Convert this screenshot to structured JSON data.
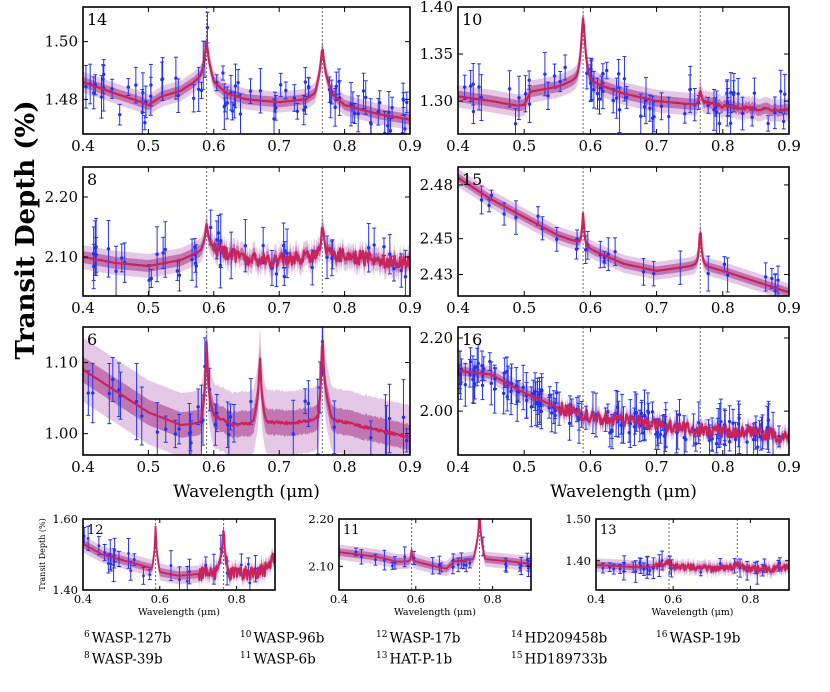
{
  "figure": {
    "ylabel": "Transit Depth (%)",
    "colors": {
      "model_dark": "#b3124e",
      "model_main": "#c8235c",
      "band_inner": "#b4529b",
      "band_outer": "#dcb6dc",
      "data": "#2233ee",
      "dashed": "#777777"
    }
  },
  "chart_data": [
    {
      "id": "14",
      "type": "line",
      "planet": "HD209458b",
      "xlim": [
        0.4,
        0.9
      ],
      "ylim": [
        1.468,
        1.512
      ],
      "yticks": [
        1.48,
        1.5
      ],
      "ytick_labels": [
        "1.48",
        "1.50"
      ],
      "xticks": [
        0.4,
        0.5,
        0.6,
        0.7,
        0.8,
        0.9
      ],
      "xtick_labels": [
        "0.4",
        "0.5",
        "0.6",
        "0.7",
        "0.8",
        "0.9"
      ],
      "xlabel": "",
      "model": [
        [
          0.4,
          1.486
        ],
        [
          0.45,
          1.482
        ],
        [
          0.49,
          1.479
        ],
        [
          0.5,
          1.478
        ],
        [
          0.52,
          1.481
        ],
        [
          0.55,
          1.483
        ],
        [
          0.57,
          1.486
        ],
        [
          0.58,
          1.488
        ],
        [
          0.589,
          1.495
        ],
        [
          0.6,
          1.486
        ],
        [
          0.62,
          1.482
        ],
        [
          0.65,
          1.48
        ],
        [
          0.7,
          1.479
        ],
        [
          0.74,
          1.48
        ],
        [
          0.755,
          1.482
        ],
        [
          0.766,
          1.492
        ],
        [
          0.78,
          1.482
        ],
        [
          0.8,
          1.478
        ],
        [
          0.85,
          1.475
        ],
        [
          0.9,
          1.473
        ]
      ],
      "lines": [
        {
          "x": 0.589,
          "w": 0.006,
          "h": 0.005,
          "s": 0.002
        },
        {
          "x": 0.766,
          "w": 0.006,
          "h": 0.006,
          "s": 0.002
        }
      ],
      "noise": 0.0004,
      "noise_start": 0.9,
      "band": 0.0018,
      "n_points": 80,
      "scatter": 0.007,
      "err": 0.006,
      "xpoints": []
    },
    {
      "id": "10",
      "type": "line",
      "planet": "WASP-96b",
      "xlim": [
        0.4,
        0.9
      ],
      "ylim": [
        1.265,
        1.4
      ],
      "yticks": [
        1.3,
        1.35,
        1.4
      ],
      "ytick_labels": [
        "1.30",
        "1.35",
        "1.40"
      ],
      "xticks": [
        0.4,
        0.5,
        0.6,
        0.7,
        0.8,
        0.9
      ],
      "xtick_labels": [
        "0.4",
        "0.5",
        "0.6",
        "0.7",
        "0.8",
        "0.9"
      ],
      "xlabel": "",
      "model": [
        [
          0.4,
          1.305
        ],
        [
          0.45,
          1.3
        ],
        [
          0.49,
          1.295
        ],
        [
          0.5,
          1.296
        ],
        [
          0.51,
          1.31
        ],
        [
          0.55,
          1.315
        ],
        [
          0.58,
          1.322
        ],
        [
          0.589,
          1.338
        ],
        [
          0.6,
          1.32
        ],
        [
          0.65,
          1.308
        ],
        [
          0.7,
          1.3
        ],
        [
          0.76,
          1.296
        ],
        [
          0.766,
          1.3
        ],
        [
          0.8,
          1.294
        ],
        [
          0.85,
          1.292
        ],
        [
          0.9,
          1.291
        ]
      ],
      "lines": [
        {
          "x": 0.589,
          "w": 0.008,
          "h": 0.05,
          "s": 0.006
        },
        {
          "x": 0.766,
          "w": 0.004,
          "h": 0.012,
          "s": 0.002
        }
      ],
      "noise": 0.002,
      "noise_start": 0.77,
      "band": 0.006,
      "n_points": 70,
      "scatter": 0.02,
      "err": 0.018,
      "xpoints": []
    },
    {
      "id": "8",
      "type": "line",
      "planet": "WASP-39b",
      "xlim": [
        0.4,
        0.9
      ],
      "ylim": [
        2.035,
        2.25
      ],
      "yticks": [
        2.1,
        2.2
      ],
      "ytick_labels": [
        "2.10",
        "2.20"
      ],
      "xticks": [
        0.4,
        0.5,
        0.6,
        0.7,
        0.8,
        0.9
      ],
      "xtick_labels": [
        "0.4",
        "0.5",
        "0.6",
        "0.7",
        "0.8",
        "0.9"
      ],
      "xlabel": "",
      "model": [
        [
          0.4,
          2.1
        ],
        [
          0.45,
          2.09
        ],
        [
          0.5,
          2.085
        ],
        [
          0.55,
          2.095
        ],
        [
          0.58,
          2.11
        ],
        [
          0.589,
          2.13
        ],
        [
          0.6,
          2.115
        ],
        [
          0.65,
          2.095
        ],
        [
          0.7,
          2.095
        ],
        [
          0.75,
          2.1
        ],
        [
          0.766,
          2.12
        ],
        [
          0.78,
          2.105
        ],
        [
          0.85,
          2.095
        ],
        [
          0.9,
          2.09
        ]
      ],
      "lines": [
        {
          "x": 0.589,
          "w": 0.005,
          "h": 0.025,
          "s": 0.006
        },
        {
          "x": 0.766,
          "w": 0.005,
          "h": 0.025,
          "s": 0.006
        }
      ],
      "noise": 0.012,
      "noise_start": 0.6,
      "band": 0.01,
      "n_points": 45,
      "scatter": 0.03,
      "err": 0.035,
      "xpoints": []
    },
    {
      "id": "15",
      "type": "line",
      "planet": "HD189733b",
      "xlim": [
        0.4,
        0.9
      ],
      "ylim": [
        2.418,
        2.49
      ],
      "yticks": [
        2.43,
        2.45,
        2.48
      ],
      "ytick_labels": [
        "2.43",
        "2.45",
        "2.48"
      ],
      "xticks": [
        0.4,
        0.5,
        0.6,
        0.7,
        0.8,
        0.9
      ],
      "xtick_labels": [
        "0.4",
        "0.5",
        "0.6",
        "0.7",
        "0.8",
        "0.9"
      ],
      "xlabel": "",
      "model": [
        [
          0.4,
          2.484
        ],
        [
          0.45,
          2.472
        ],
        [
          0.5,
          2.462
        ],
        [
          0.55,
          2.452
        ],
        [
          0.58,
          2.448
        ],
        [
          0.6,
          2.444
        ],
        [
          0.65,
          2.436
        ],
        [
          0.7,
          2.432
        ],
        [
          0.74,
          2.434
        ],
        [
          0.766,
          2.435
        ],
        [
          0.8,
          2.432
        ],
        [
          0.85,
          2.426
        ],
        [
          0.9,
          2.42
        ]
      ],
      "lines": [
        {
          "x": 0.589,
          "w": 0.004,
          "h": 0.018,
          "s": 0.001
        },
        {
          "x": 0.766,
          "w": 0.005,
          "h": 0.02,
          "s": 0.001
        }
      ],
      "noise": 0.0004,
      "noise_start": 0.9,
      "band": 0.0025,
      "n_points": 28,
      "scatter": 0.005,
      "err": 0.007,
      "xpoints": []
    },
    {
      "id": "6",
      "type": "line",
      "planet": "WASP-127b",
      "xlim": [
        0.4,
        0.9
      ],
      "ylim": [
        0.97,
        1.15
      ],
      "yticks": [
        1.0,
        1.1
      ],
      "ytick_labels": [
        "1.00",
        "1.10"
      ],
      "xticks": [
        0.4,
        0.5,
        0.6,
        0.7,
        0.8,
        0.9
      ],
      "xtick_labels": [
        "0.4",
        "0.5",
        "0.6",
        "0.7",
        "0.8",
        "0.9"
      ],
      "xlabel": "Wavelength (μm)",
      "model": [
        [
          0.4,
          1.09
        ],
        [
          0.45,
          1.06
        ],
        [
          0.5,
          1.03
        ],
        [
          0.55,
          1.012
        ],
        [
          0.58,
          1.015
        ],
        [
          0.589,
          1.06
        ],
        [
          0.6,
          1.025
        ],
        [
          0.63,
          1.012
        ],
        [
          0.66,
          1.015
        ],
        [
          0.67,
          1.055
        ],
        [
          0.68,
          1.015
        ],
        [
          0.72,
          1.015
        ],
        [
          0.76,
          1.02
        ],
        [
          0.766,
          1.08
        ],
        [
          0.78,
          1.02
        ],
        [
          0.85,
          1.005
        ],
        [
          0.9,
          0.995
        ]
      ],
      "lines": [
        {
          "x": 0.589,
          "w": 0.004,
          "h": 0.07,
          "s": 0.004
        },
        {
          "x": 0.6708,
          "w": 0.004,
          "h": 0.055,
          "s": 0.003
        },
        {
          "x": 0.766,
          "w": 0.004,
          "h": 0.06,
          "s": 0.004
        }
      ],
      "noise": 0.002,
      "noise_start": 0.6,
      "band": 0.018,
      "band_outer_scale": 2.5,
      "n_points": 40,
      "scatter": 0.03,
      "err": 0.04,
      "xpoints": []
    },
    {
      "id": "16",
      "type": "line",
      "planet": "WASP-19b",
      "xlim": [
        0.4,
        0.9
      ],
      "ylim": [
        1.88,
        2.23
      ],
      "yticks": [
        2.0,
        2.2
      ],
      "ytick_labels": [
        "2.00",
        "2.20"
      ],
      "xticks": [
        0.4,
        0.5,
        0.6,
        0.7,
        0.8,
        0.9
      ],
      "xtick_labels": [
        "0.4",
        "0.5",
        "0.6",
        "0.7",
        "0.8",
        "0.9"
      ],
      "xlabel": "Wavelength (μm)",
      "model": [
        [
          0.4,
          2.11
        ],
        [
          0.45,
          2.1
        ],
        [
          0.5,
          2.05
        ],
        [
          0.55,
          2.01
        ],
        [
          0.6,
          1.985
        ],
        [
          0.65,
          1.975
        ],
        [
          0.7,
          1.965
        ],
        [
          0.75,
          1.95
        ],
        [
          0.8,
          1.945
        ],
        [
          0.85,
          1.94
        ],
        [
          0.9,
          1.93
        ]
      ],
      "lines": [],
      "noise": 0.018,
      "noise_start": 0.55,
      "band": 0.012,
      "n_points": 140,
      "scatter": 0.04,
      "err": 0.05,
      "xpoints": []
    },
    {
      "id": "12",
      "type": "line",
      "planet": "WASP-17b",
      "xlim": [
        0.4,
        0.9
      ],
      "ylim": [
        1.4,
        1.6
      ],
      "yticks": [
        1.4,
        1.6
      ],
      "ytick_labels": [
        "1.40",
        "1.60"
      ],
      "xticks": [
        0.4,
        0.6,
        0.8
      ],
      "xtick_labels": [
        "0.4",
        "0.6",
        "0.8"
      ],
      "xlabel": "Wavelength (μm)",
      "ylabel": "Transit Depth (%)",
      "model": [
        [
          0.4,
          1.53
        ],
        [
          0.45,
          1.5
        ],
        [
          0.5,
          1.485
        ],
        [
          0.55,
          1.47
        ],
        [
          0.58,
          1.46
        ],
        [
          0.589,
          1.52
        ],
        [
          0.6,
          1.45
        ],
        [
          0.65,
          1.44
        ],
        [
          0.7,
          1.445
        ],
        [
          0.75,
          1.45
        ],
        [
          0.766,
          1.52
        ],
        [
          0.78,
          1.445
        ],
        [
          0.85,
          1.45
        ],
        [
          0.88,
          1.46
        ],
        [
          0.9,
          1.5
        ]
      ],
      "lines": [
        {
          "x": 0.589,
          "w": 0.004,
          "h": 0.06,
          "s": 0.004
        },
        {
          "x": 0.766,
          "w": 0.004,
          "h": 0.06,
          "s": 0.004
        }
      ],
      "noise": 0.02,
      "noise_start": 0.7,
      "band": 0.012,
      "n_points": 28,
      "scatter": 0.03,
      "err": 0.035,
      "xpoints": []
    },
    {
      "id": "11",
      "type": "line",
      "planet": "WASP-6b",
      "xlim": [
        0.4,
        0.9
      ],
      "ylim": [
        2.05,
        2.2
      ],
      "yticks": [
        2.1,
        2.2
      ],
      "ytick_labels": [
        "2.10",
        "2.20"
      ],
      "xticks": [
        0.4,
        0.6,
        0.8
      ],
      "xtick_labels": [
        "0.4",
        "0.6",
        "0.8"
      ],
      "xlabel": "Wavelength (μm)",
      "model": [
        [
          0.4,
          2.13
        ],
        [
          0.5,
          2.12
        ],
        [
          0.55,
          2.11
        ],
        [
          0.589,
          2.11
        ],
        [
          0.6,
          2.11
        ],
        [
          0.65,
          2.1
        ],
        [
          0.68,
          2.095
        ],
        [
          0.7,
          2.11
        ],
        [
          0.75,
          2.115
        ],
        [
          0.766,
          2.17
        ],
        [
          0.78,
          2.115
        ],
        [
          0.85,
          2.11
        ],
        [
          0.9,
          2.105
        ]
      ],
      "lines": [
        {
          "x": 0.589,
          "w": 0.004,
          "h": 0.025,
          "s": 0.002
        },
        {
          "x": 0.766,
          "w": 0.005,
          "h": 0.05,
          "s": 0.002
        }
      ],
      "noise": 0.001,
      "noise_start": 0.9,
      "band": 0.008,
      "n_points": 26,
      "scatter": 0.012,
      "err": 0.015,
      "xpoints": []
    },
    {
      "id": "13",
      "type": "line",
      "planet": "HAT-P-1b",
      "xlim": [
        0.4,
        0.9
      ],
      "ylim": [
        1.33,
        1.5
      ],
      "yticks": [
        1.4,
        1.5
      ],
      "ytick_labels": [
        "1.40",
        "1.50"
      ],
      "xticks": [
        0.4,
        0.6,
        0.8
      ],
      "xtick_labels": [
        "0.4",
        "0.6",
        "0.8"
      ],
      "xlabel": "Wavelength (μm)",
      "model": [
        [
          0.4,
          1.39
        ],
        [
          0.5,
          1.385
        ],
        [
          0.55,
          1.385
        ],
        [
          0.589,
          1.395
        ],
        [
          0.6,
          1.385
        ],
        [
          0.65,
          1.385
        ],
        [
          0.7,
          1.38
        ],
        [
          0.75,
          1.385
        ],
        [
          0.766,
          1.39
        ],
        [
          0.8,
          1.38
        ],
        [
          0.85,
          1.38
        ],
        [
          0.9,
          1.385
        ]
      ],
      "lines": [],
      "noise": 0.008,
      "noise_start": 0.55,
      "band": 0.008,
      "n_points": 30,
      "scatter": 0.012,
      "err": 0.02,
      "xpoints": []
    }
  ],
  "legend": [
    {
      "num": "6",
      "name": "WASP-127b"
    },
    {
      "num": "8",
      "name": "WASP-39b"
    },
    {
      "num": "10",
      "name": "WASP-96b"
    },
    {
      "num": "11",
      "name": "WASP-6b"
    },
    {
      "num": "12",
      "name": "WASP-17b"
    },
    {
      "num": "13",
      "name": "HAT-P-1b"
    },
    {
      "num": "14",
      "name": "HD209458b"
    },
    {
      "num": "15",
      "name": "HD189733b"
    },
    {
      "num": "16",
      "name": "WASP-19b"
    }
  ]
}
